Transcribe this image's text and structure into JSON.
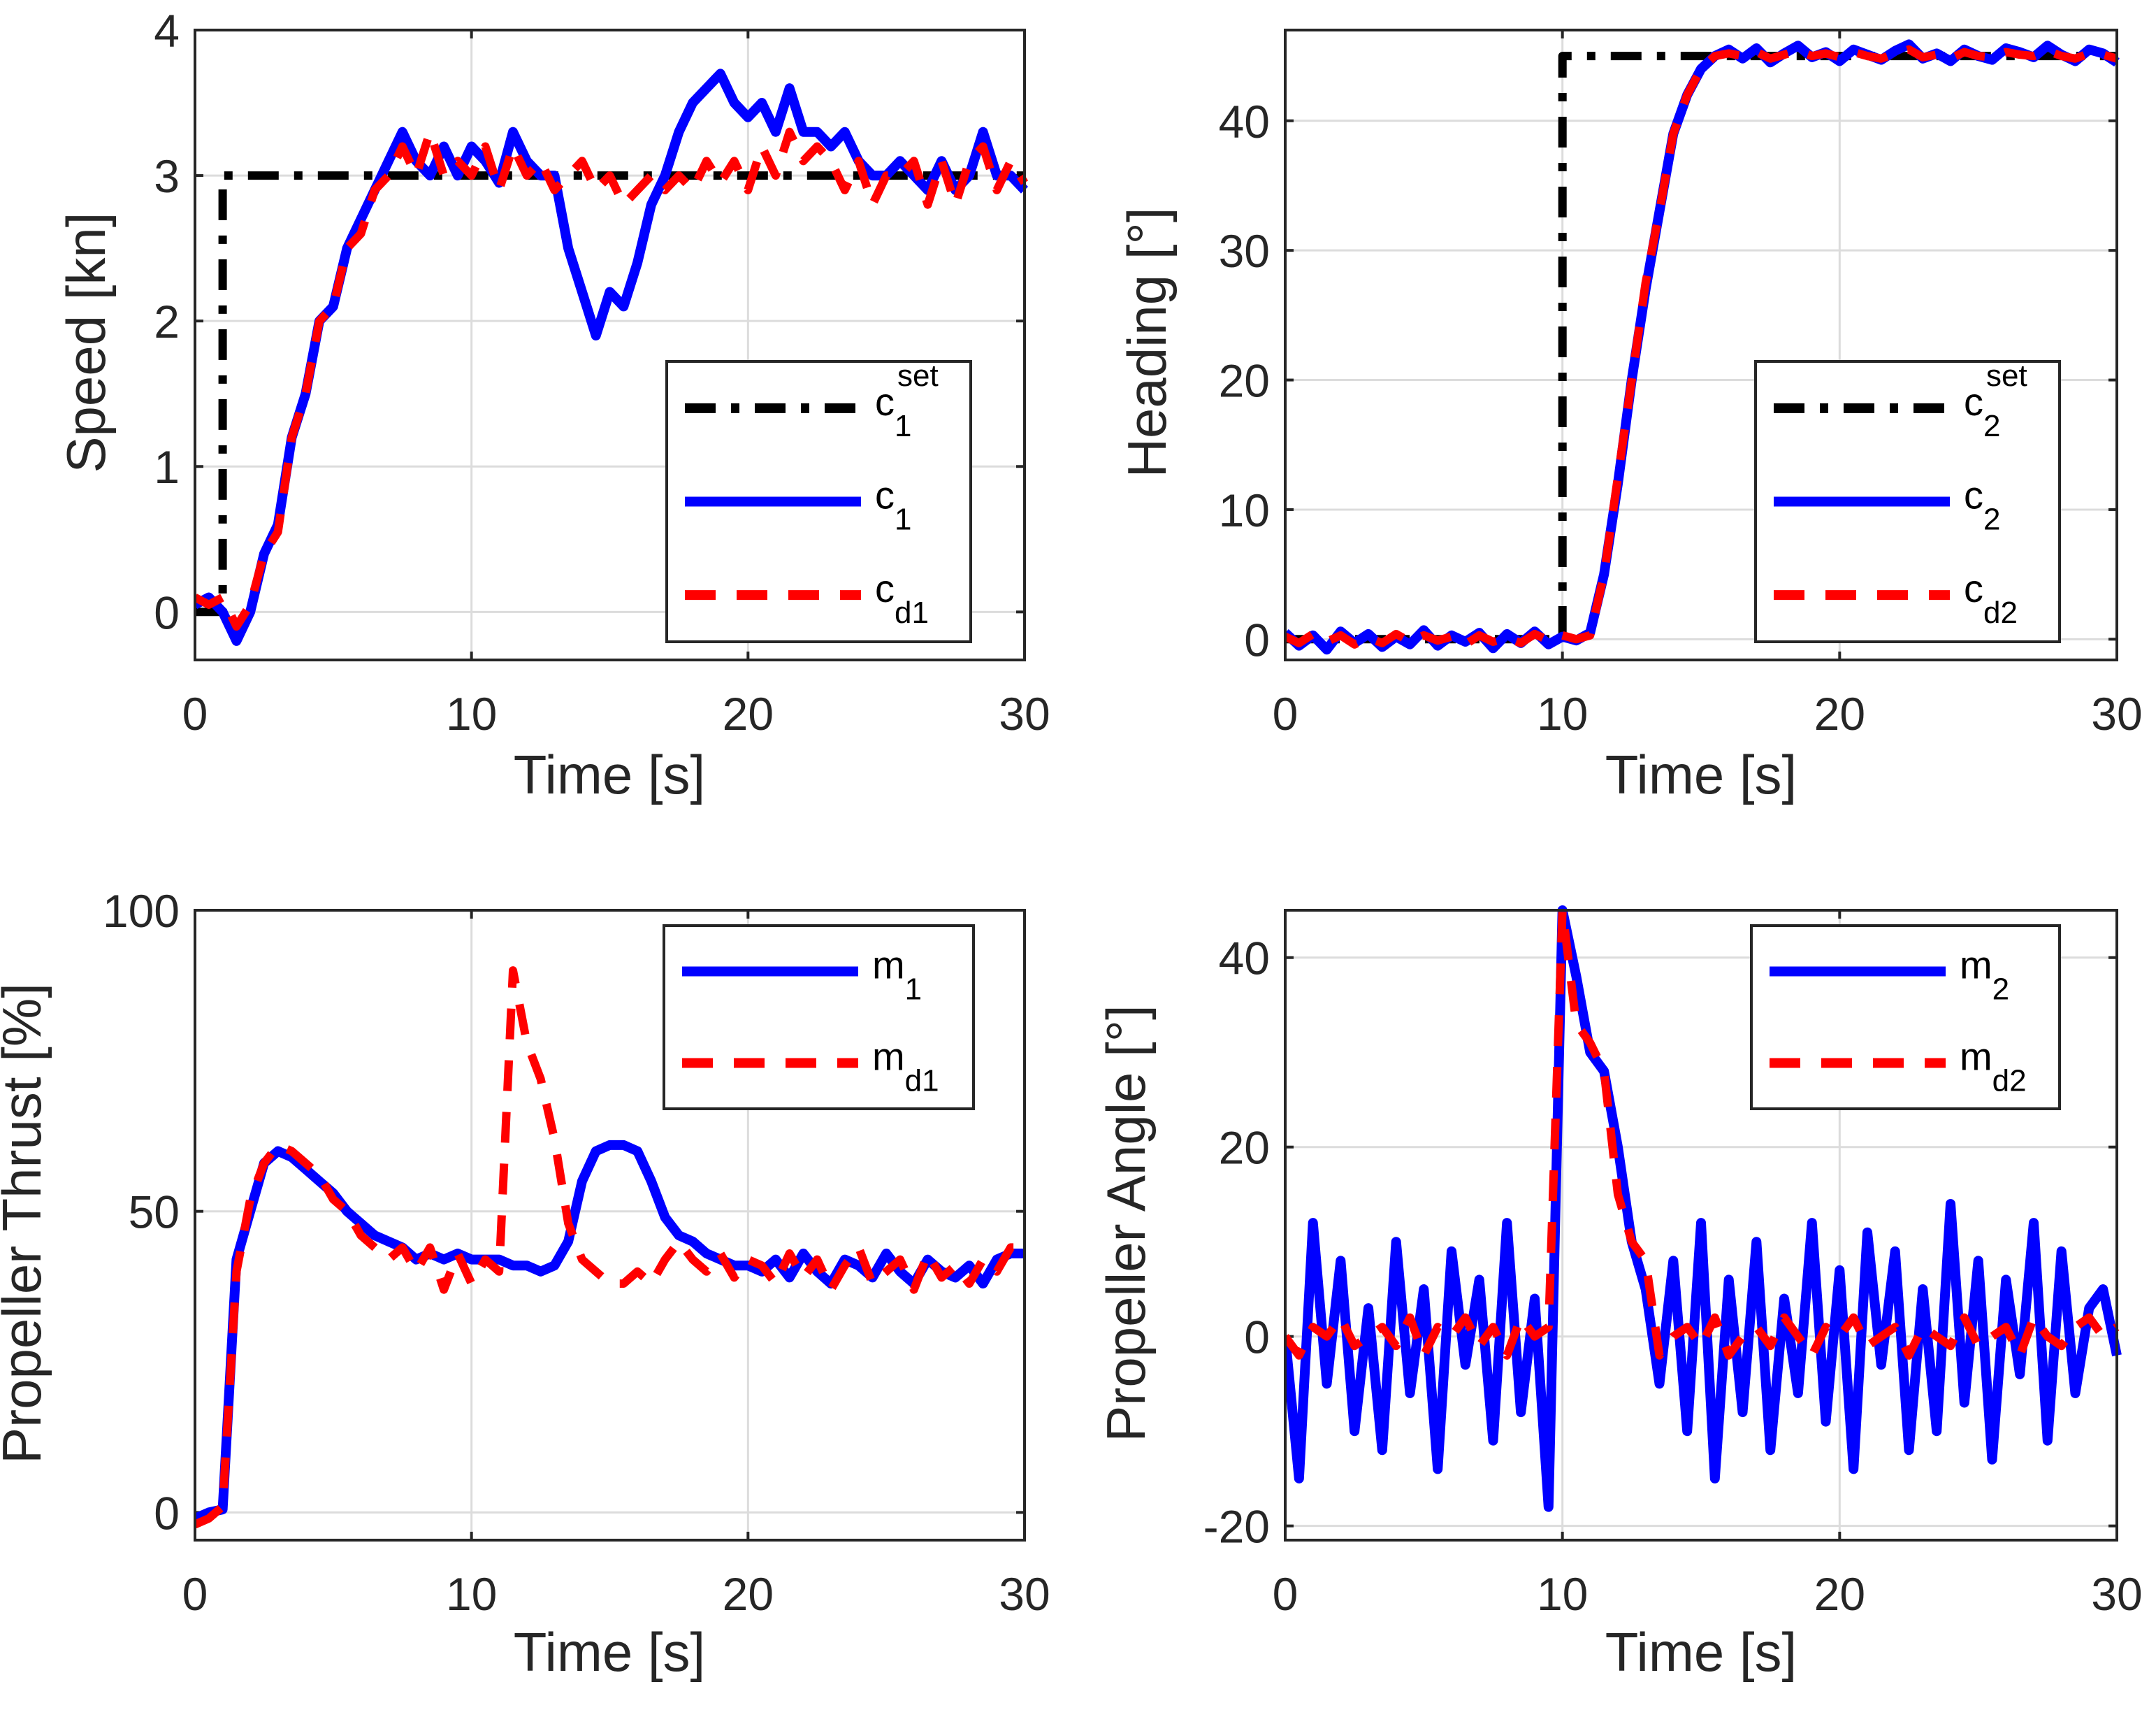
{
  "chart_data": [
    {
      "type": "line",
      "id": "speed",
      "ylabel": "Speed [kn]",
      "xlabel": "Time [s]",
      "xlim": [
        0,
        30
      ],
      "ylim": [
        -0.33,
        4
      ],
      "xticks": [
        0,
        10,
        20,
        30
      ],
      "yticks": [
        0,
        1,
        2,
        3,
        4
      ],
      "grid": true,
      "legend_position": "bottom-right",
      "series": [
        {
          "name": "c1set",
          "label": {
            "base": "c",
            "sub": "1",
            "sup": "set"
          },
          "color": "#000000",
          "style": "dashdot",
          "x": [
            0,
            1,
            1,
            23,
            30
          ],
          "y": [
            0,
            0,
            3,
            3,
            3
          ]
        },
        {
          "name": "c1",
          "label": {
            "base": "c",
            "sub": "1",
            "sup": ""
          },
          "color": "#0000ff",
          "style": "solid",
          "dt": 0.5,
          "y": [
            0.05,
            0.1,
            0.0,
            -0.2,
            0.0,
            0.4,
            0.6,
            1.2,
            1.5,
            2.0,
            2.1,
            2.5,
            2.7,
            2.9,
            3.1,
            3.3,
            3.1,
            3.0,
            3.2,
            3.0,
            3.2,
            3.1,
            2.95,
            3.3,
            3.1,
            3.0,
            3.0,
            2.5,
            2.2,
            1.9,
            2.2,
            2.1,
            2.4,
            2.8,
            3.0,
            3.3,
            3.5,
            3.6,
            3.7,
            3.5,
            3.4,
            3.5,
            3.3,
            3.6,
            3.3,
            3.3,
            3.2,
            3.3,
            3.1,
            3.0,
            3.0,
            3.1,
            3.0,
            2.9,
            3.1,
            2.9,
            3.0,
            3.3,
            3.0,
            3.0,
            2.9
          ]
        },
        {
          "name": "cd1",
          "label": {
            "base": "c",
            "sub": "d1",
            "sup": ""
          },
          "color": "#ff0000",
          "style": "dashed",
          "dt": 0.5,
          "y": [
            0.1,
            0.05,
            0.1,
            -0.1,
            0.05,
            0.4,
            0.55,
            1.2,
            1.5,
            2.0,
            2.1,
            2.5,
            2.6,
            2.9,
            3.0,
            3.2,
            3.0,
            3.3,
            3.0,
            3.1,
            3.0,
            3.2,
            2.9,
            3.2,
            3.0,
            3.1,
            2.9,
            3.0,
            3.1,
            2.9,
            3.0,
            2.8,
            2.9,
            3.0,
            2.9,
            3.0,
            2.9,
            3.1,
            2.95,
            3.1,
            2.9,
            3.2,
            3.0,
            3.3,
            3.1,
            3.2,
            3.1,
            2.9,
            3.1,
            2.8,
            3.0,
            3.0,
            3.1,
            2.8,
            3.1,
            2.8,
            3.1,
            3.2,
            2.9,
            3.1,
            2.95
          ]
        }
      ]
    },
    {
      "type": "line",
      "id": "heading",
      "ylabel": "Heading [°]",
      "xlabel": "Time [s]",
      "xlim": [
        0,
        30
      ],
      "ylim": [
        -1.6,
        47
      ],
      "xticks": [
        0,
        10,
        20,
        30
      ],
      "yticks": [
        0,
        10,
        20,
        30,
        40
      ],
      "grid": true,
      "legend_position": "bottom-right",
      "series": [
        {
          "name": "c2set",
          "label": {
            "base": "c",
            "sub": "2",
            "sup": "set"
          },
          "color": "#000000",
          "style": "dashdot",
          "x": [
            0,
            10,
            10,
            30
          ],
          "y": [
            0,
            0,
            45,
            45
          ]
        },
        {
          "name": "c2",
          "label": {
            "base": "c",
            "sub": "2",
            "sup": ""
          },
          "color": "#0000ff",
          "style": "solid",
          "dt": 0.5,
          "y": [
            0.5,
            -0.5,
            0.3,
            -0.8,
            0.6,
            -0.3,
            0.4,
            -0.6,
            0.2,
            -0.4,
            0.7,
            -0.5,
            0.3,
            -0.2,
            0.5,
            -0.7,
            0.4,
            -0.3,
            0.6,
            -0.4,
            0.2,
            -0.1,
            0.5,
            5,
            12,
            20,
            27,
            33,
            39,
            42,
            44,
            45,
            45.5,
            44.8,
            45.6,
            44.5,
            45.2,
            45.8,
            44.9,
            45.3,
            44.6,
            45.5,
            45.1,
            44.7,
            45.4,
            45.9,
            44.8,
            45.2,
            44.6,
            45.5,
            45.0,
            44.7,
            45.6,
            45.3,
            44.9,
            45.8,
            45.1,
            44.6,
            45.5,
            45.2,
            44.5
          ]
        },
        {
          "name": "cd2",
          "label": {
            "base": "c",
            "sub": "d2",
            "sup": ""
          },
          "color": "#ff0000",
          "style": "dashed",
          "dt": 0.5,
          "y": [
            0.2,
            -0.3,
            0.4,
            -0.2,
            0.3,
            -0.4,
            0.1,
            -0.3,
            0.4,
            -0.2,
            0.3,
            -0.1,
            0.2,
            -0.4,
            0.3,
            -0.2,
            0.1,
            -0.3,
            0.4,
            -0.1,
            0.3,
            0.0,
            0.3,
            5,
            12.5,
            20,
            27.5,
            33,
            39,
            42,
            44,
            45,
            45.2,
            45.0,
            45.3,
            44.8,
            45.1,
            45.4,
            45.0,
            45.2,
            44.9,
            45.3,
            45.0,
            44.8,
            45.2,
            45.5,
            44.9,
            45.1,
            44.8,
            45.3,
            45.0,
            44.9,
            45.3,
            45.1,
            45.0,
            45.4,
            45.0,
            44.8,
            45.2,
            45.1,
            44.8
          ]
        }
      ]
    },
    {
      "type": "line",
      "id": "thrust",
      "ylabel": "Propeller Thrust [%]",
      "xlabel": "Time [s]",
      "xlim": [
        0,
        30
      ],
      "ylim": [
        -4.6,
        100
      ],
      "xticks": [
        0,
        10,
        20,
        30
      ],
      "yticks": [
        0,
        50,
        100
      ],
      "grid": true,
      "legend_position": "top-right",
      "series": [
        {
          "name": "m1",
          "label": {
            "base": "m",
            "sub": "1",
            "sup": ""
          },
          "color": "#0000ff",
          "style": "solid",
          "dt": 0.5,
          "y": [
            -1,
            0,
            0.5,
            42,
            50,
            58,
            60,
            59,
            57,
            55,
            53,
            50,
            48,
            46,
            45,
            44,
            42,
            43,
            42,
            43,
            42,
            42,
            42,
            41,
            41,
            40,
            41,
            45,
            55,
            60,
            61,
            61,
            60,
            55,
            49,
            46,
            45,
            43,
            42,
            41,
            41,
            40,
            42,
            39,
            43,
            40,
            38,
            42,
            41,
            39,
            43,
            40,
            38,
            42,
            40,
            39,
            41,
            38,
            42,
            43,
            43
          ]
        },
        {
          "name": "md1",
          "label": {
            "base": "m",
            "sub": "d1",
            "sup": ""
          },
          "color": "#ff0000",
          "style": "dashed",
          "dt": 0.5,
          "y": [
            -2,
            -1,
            1,
            40,
            52,
            58,
            61,
            60,
            58,
            56,
            52,
            50,
            46,
            44,
            42,
            44,
            40,
            44,
            37,
            43,
            38,
            42,
            40,
            90,
            78,
            72,
            62,
            48,
            42,
            40,
            38,
            38,
            40,
            38,
            42,
            45,
            42,
            40,
            43,
            39,
            42,
            41,
            38,
            43,
            39,
            42,
            37,
            41,
            44,
            38,
            40,
            42,
            37,
            43,
            39,
            41,
            38,
            42,
            40,
            44,
            44
          ]
        }
      ]
    },
    {
      "type": "line",
      "id": "angle",
      "ylabel": "Propeller Angle [°]",
      "xlabel": "Time [s]",
      "xlim": [
        0,
        30
      ],
      "ylim": [
        -21.5,
        45
      ],
      "xticks": [
        0,
        10,
        20,
        30
      ],
      "yticks": [
        -20,
        0,
        20,
        40
      ],
      "grid": true,
      "legend_position": "top-right",
      "series": [
        {
          "name": "m2",
          "label": {
            "base": "m",
            "sub": "2",
            "sup": ""
          },
          "color": "#0000ff",
          "style": "solid",
          "dt": 0.5,
          "y": [
            0,
            -15,
            12,
            -5,
            8,
            -10,
            3,
            -12,
            10,
            -6,
            5,
            -14,
            9,
            -3,
            6,
            -11,
            12,
            -8,
            4,
            -18,
            45,
            38,
            30,
            28,
            20,
            10,
            5,
            -5,
            8,
            -10,
            12,
            -15,
            6,
            -8,
            10,
            -12,
            4,
            -6,
            12,
            -9,
            7,
            -14,
            11,
            -3,
            9,
            -12,
            5,
            -10,
            14,
            -7,
            8,
            -13,
            6,
            -4,
            12,
            -11,
            9,
            -6,
            3,
            5,
            -2
          ]
        },
        {
          "name": "md2",
          "label": {
            "base": "m",
            "sub": "d2",
            "sup": ""
          },
          "color": "#ff0000",
          "style": "dashed",
          "dt": 0.5,
          "y": [
            0,
            -2,
            1,
            0,
            2,
            -1,
            0,
            1,
            -1,
            2,
            -2,
            1,
            0,
            2,
            -1,
            1,
            -2,
            2,
            0,
            1,
            45,
            33,
            31,
            28,
            15,
            10,
            8,
            -2,
            0,
            1,
            -1,
            2,
            -2,
            0,
            1,
            -1,
            2,
            0,
            -2,
            1,
            0,
            2,
            -1,
            0,
            1,
            -2,
            1,
            0,
            -1,
            2,
            -1,
            0,
            1,
            -2,
            2,
            0,
            -1,
            1,
            2,
            0,
            1
          ]
        }
      ]
    }
  ]
}
